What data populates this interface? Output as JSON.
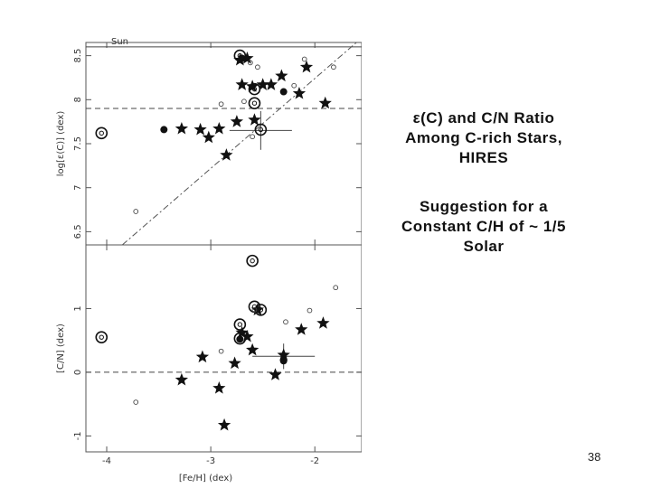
{
  "slide": {
    "title_line1": "ε(C) and C/N Ratio",
    "title_line2": "Among C-rich Stars,",
    "title_line3": "HIRES",
    "sub_line1": "Suggestion for a",
    "sub_line2": "Constant C/H of ~ 1/5",
    "sub_line3": "Solar",
    "page_number": "38"
  },
  "chart_data": [
    {
      "type": "scatter",
      "ylabel": "log[ε(C)] (dex)",
      "xlabel": "",
      "xlim": [
        -4.2,
        -1.55
      ],
      "ylim": [
        6.35,
        8.65
      ],
      "yticks": [
        "6.5",
        "7",
        "7.5",
        "8",
        "8.5"
      ],
      "reference_line_label": "Sun",
      "reference_line_value": 8.6,
      "dashed_line_value": 7.9,
      "dashdot_line": [
        [
          -3.85,
          6.35
        ],
        [
          -1.6,
          8.65
        ]
      ],
      "errorbar": {
        "x": -2.52,
        "y": 7.65,
        "xerr": 0.3,
        "yerr": 0.22
      },
      "series": [
        {
          "marker": "star",
          "points": [
            [
              -3.28,
              7.67
            ],
            [
              -3.1,
              7.66
            ],
            [
              -3.02,
              7.57
            ],
            [
              -2.92,
              7.67
            ],
            [
              -2.85,
              7.37
            ],
            [
              -2.75,
              7.75
            ],
            [
              -2.72,
              8.45
            ],
            [
              -2.7,
              8.17
            ],
            [
              -2.65,
              8.47
            ],
            [
              -2.6,
              8.15
            ],
            [
              -2.58,
              7.77
            ],
            [
              -2.5,
              8.17
            ],
            [
              -2.42,
              8.17
            ],
            [
              -2.32,
              8.27
            ],
            [
              -2.15,
              8.07
            ],
            [
              -2.08,
              8.37
            ],
            [
              -1.9,
              7.96
            ]
          ]
        },
        {
          "marker": "filled-circle",
          "points": [
            [
              -3.45,
              7.66
            ],
            [
              -2.3,
              8.09
            ],
            [
              -2.7,
              8.47
            ]
          ]
        },
        {
          "marker": "open-circle",
          "points": [
            [
              -4.05,
              7.62
            ],
            [
              -2.72,
              8.5
            ],
            [
              -2.58,
              8.12
            ],
            [
              -2.58,
              7.96
            ],
            [
              -2.52,
              7.66
            ]
          ]
        },
        {
          "marker": "small-circle",
          "points": [
            [
              -3.72,
              6.73
            ],
            [
              -2.9,
              7.95
            ],
            [
              -2.62,
              8.42
            ],
            [
              -2.55,
              8.37
            ],
            [
              -2.2,
              8.16
            ],
            [
              -2.1,
              8.46
            ],
            [
              -1.82,
              8.37
            ],
            [
              -2.68,
              7.98
            ],
            [
              -2.6,
              7.58
            ]
          ]
        }
      ]
    },
    {
      "type": "scatter",
      "ylabel": "[C/N] (dex)",
      "xlabel": "[Fe/H] (dex)",
      "xlim": [
        -4.2,
        -1.55
      ],
      "ylim": [
        -1.25,
        2.0
      ],
      "xticks": [
        "-4",
        "-3",
        "-2"
      ],
      "yticks": [
        "-1",
        "0",
        "1"
      ],
      "dashed_line_value": 0,
      "errorbar": {
        "x": -2.3,
        "y": 0.25,
        "xerr": 0.3,
        "yerr": 0.2
      },
      "series": [
        {
          "marker": "star",
          "points": [
            [
              -3.28,
              -0.12
            ],
            [
              -3.08,
              0.24
            ],
            [
              -2.92,
              -0.25
            ],
            [
              -2.87,
              -0.83
            ],
            [
              -2.77,
              0.14
            ],
            [
              -2.7,
              0.62
            ],
            [
              -2.65,
              0.56
            ],
            [
              -2.6,
              0.35
            ],
            [
              -2.55,
              0.98
            ],
            [
              -2.38,
              -0.04
            ],
            [
              -2.3,
              0.27
            ],
            [
              -2.13,
              0.67
            ],
            [
              -1.92,
              0.77
            ]
          ]
        },
        {
          "marker": "filled-circle",
          "points": [
            [
              -2.72,
              0.52
            ],
            [
              -2.3,
              0.18
            ]
          ]
        },
        {
          "marker": "open-circle",
          "points": [
            [
              -4.05,
              0.55
            ],
            [
              -2.72,
              0.75
            ],
            [
              -2.72,
              0.53
            ],
            [
              -2.6,
              1.75
            ],
            [
              -2.58,
              1.03
            ],
            [
              -2.52,
              0.98
            ]
          ]
        },
        {
          "marker": "small-circle",
          "points": [
            [
              -3.72,
              -0.47
            ],
            [
              -2.9,
              0.33
            ],
            [
              -2.58,
              0.98
            ],
            [
              -2.28,
              0.79
            ],
            [
              -2.05,
              0.97
            ],
            [
              -1.8,
              1.33
            ]
          ]
        }
      ]
    }
  ]
}
